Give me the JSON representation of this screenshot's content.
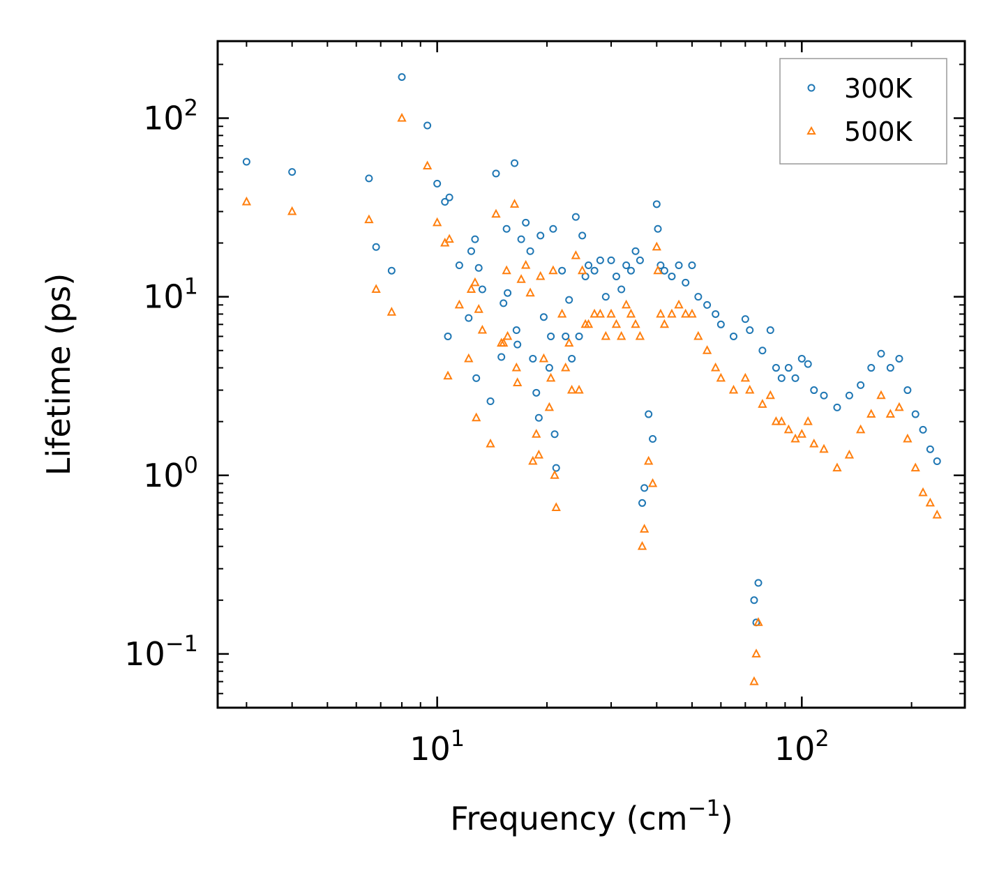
{
  "chart_data": {
    "type": "scatter",
    "xlabel": "Frequency (cm",
    "xlabel_exp": "−1",
    "xlabel_close": ")",
    "ylabel": "Lifetime (ps)",
    "xscale": "log",
    "yscale": "log",
    "xlim": [
      2.5,
      280
    ],
    "ylim": [
      0.05,
      270
    ],
    "x_ticks": [
      {
        "value": 10,
        "base": "10",
        "exp": "1"
      },
      {
        "value": 100,
        "base": "10",
        "exp": "2"
      }
    ],
    "y_ticks": [
      {
        "value": 0.1,
        "base": "10",
        "exp": "−1"
      },
      {
        "value": 1,
        "base": "10",
        "exp": "0"
      },
      {
        "value": 10,
        "base": "10",
        "exp": "1"
      },
      {
        "value": 100,
        "base": "10",
        "exp": "2"
      }
    ],
    "legend_position": "top-right",
    "series": [
      {
        "name": "300K",
        "marker": "circle",
        "color": "#1f77b4",
        "points": [
          [
            3,
            57
          ],
          [
            4,
            50
          ],
          [
            6.5,
            46
          ],
          [
            6.8,
            19
          ],
          [
            7.5,
            14
          ],
          [
            8,
            170
          ],
          [
            9.4,
            91
          ],
          [
            10,
            43
          ],
          [
            10.5,
            34
          ],
          [
            10.8,
            36
          ],
          [
            10.7,
            6
          ],
          [
            11.5,
            15
          ],
          [
            12.2,
            7.6
          ],
          [
            12.4,
            18
          ],
          [
            12.7,
            21
          ],
          [
            12.8,
            3.5
          ],
          [
            13,
            14.5
          ],
          [
            13.3,
            11
          ],
          [
            14,
            2.6
          ],
          [
            14.5,
            49
          ],
          [
            15,
            4.6
          ],
          [
            15.2,
            9.2
          ],
          [
            15.5,
            24
          ],
          [
            15.6,
            10.5
          ],
          [
            16.3,
            56
          ],
          [
            16.5,
            6.5
          ],
          [
            16.6,
            5.4
          ],
          [
            17,
            21
          ],
          [
            17.5,
            26
          ],
          [
            18,
            18
          ],
          [
            18.3,
            4.5
          ],
          [
            18.7,
            2.9
          ],
          [
            19,
            2.1
          ],
          [
            19.2,
            22
          ],
          [
            19.6,
            7.7
          ],
          [
            20.3,
            4
          ],
          [
            20.5,
            6
          ],
          [
            20.8,
            24
          ],
          [
            21,
            1.7
          ],
          [
            21.2,
            1.1
          ],
          [
            22,
            14
          ],
          [
            22.5,
            6
          ],
          [
            23,
            9.6
          ],
          [
            23.4,
            4.5
          ],
          [
            24,
            28
          ],
          [
            24.5,
            6
          ],
          [
            25,
            22
          ],
          [
            25.5,
            13
          ],
          [
            26,
            15
          ],
          [
            27,
            14
          ],
          [
            28,
            16
          ],
          [
            29,
            10
          ],
          [
            30,
            16
          ],
          [
            31,
            13
          ],
          [
            32,
            11
          ],
          [
            33,
            15
          ],
          [
            34,
            14
          ],
          [
            35,
            18
          ],
          [
            36,
            16
          ],
          [
            36.5,
            0.7
          ],
          [
            37,
            0.85
          ],
          [
            38,
            2.2
          ],
          [
            39,
            1.6
          ],
          [
            40,
            33
          ],
          [
            40.3,
            24
          ],
          [
            41,
            15
          ],
          [
            42,
            14
          ],
          [
            44,
            13
          ],
          [
            46,
            15
          ],
          [
            48,
            12
          ],
          [
            50,
            15
          ],
          [
            52,
            10
          ],
          [
            55,
            9
          ],
          [
            58,
            8
          ],
          [
            60,
            7
          ],
          [
            65,
            6
          ],
          [
            70,
            7.5
          ],
          [
            72,
            6.5
          ],
          [
            74,
            0.2
          ],
          [
            75,
            0.15
          ],
          [
            76,
            0.25
          ],
          [
            78,
            5
          ],
          [
            82,
            6.5
          ],
          [
            85,
            4
          ],
          [
            88,
            3.5
          ],
          [
            92,
            4
          ],
          [
            96,
            3.5
          ],
          [
            100,
            4.5
          ],
          [
            104,
            4.2
          ],
          [
            108,
            3
          ],
          [
            115,
            2.8
          ],
          [
            125,
            2.4
          ],
          [
            135,
            2.8
          ],
          [
            145,
            3.2
          ],
          [
            155,
            4
          ],
          [
            165,
            4.8
          ],
          [
            175,
            4
          ],
          [
            185,
            4.5
          ],
          [
            195,
            3
          ],
          [
            205,
            2.2
          ],
          [
            215,
            1.8
          ],
          [
            225,
            1.4
          ],
          [
            235,
            1.2
          ]
        ]
      },
      {
        "name": "500K",
        "marker": "triangle",
        "color": "#ff7f0e",
        "points": [
          [
            3,
            34
          ],
          [
            4,
            30
          ],
          [
            6.5,
            27
          ],
          [
            6.8,
            11
          ],
          [
            7.5,
            8.2
          ],
          [
            8,
            100
          ],
          [
            9.4,
            54
          ],
          [
            10,
            26
          ],
          [
            10.5,
            20
          ],
          [
            10.8,
            21
          ],
          [
            10.7,
            3.6
          ],
          [
            11.5,
            9
          ],
          [
            12.2,
            4.5
          ],
          [
            12.4,
            11
          ],
          [
            12.7,
            12
          ],
          [
            12.8,
            2.1
          ],
          [
            13,
            8.5
          ],
          [
            13.3,
            6.5
          ],
          [
            14,
            1.5
          ],
          [
            14.5,
            29
          ],
          [
            15,
            5.5
          ],
          [
            15.2,
            5.5
          ],
          [
            15.5,
            14
          ],
          [
            15.6,
            6
          ],
          [
            16.3,
            33
          ],
          [
            16.5,
            4
          ],
          [
            16.6,
            3.3
          ],
          [
            17,
            12.5
          ],
          [
            17.5,
            15
          ],
          [
            18,
            10.5
          ],
          [
            18.3,
            1.2
          ],
          [
            18.7,
            1.7
          ],
          [
            19,
            1.3
          ],
          [
            19.2,
            13
          ],
          [
            19.6,
            4.5
          ],
          [
            20.3,
            2.4
          ],
          [
            20.5,
            3.5
          ],
          [
            20.8,
            14
          ],
          [
            21,
            1.0
          ],
          [
            21.2,
            0.66
          ],
          [
            22,
            8
          ],
          [
            22.5,
            4
          ],
          [
            23,
            5.5
          ],
          [
            23.4,
            3
          ],
          [
            24,
            17
          ],
          [
            24.5,
            3
          ],
          [
            25,
            14
          ],
          [
            25.5,
            7
          ],
          [
            26,
            7
          ],
          [
            27,
            8
          ],
          [
            28,
            8
          ],
          [
            29,
            6
          ],
          [
            30,
            8
          ],
          [
            31,
            7
          ],
          [
            32,
            6
          ],
          [
            33,
            9
          ],
          [
            34,
            8
          ],
          [
            35,
            7
          ],
          [
            36,
            6
          ],
          [
            36.5,
            0.4
          ],
          [
            37,
            0.5
          ],
          [
            38,
            1.2
          ],
          [
            39,
            0.9
          ],
          [
            40,
            19
          ],
          [
            40.3,
            14
          ],
          [
            41,
            8
          ],
          [
            42,
            7
          ],
          [
            44,
            8
          ],
          [
            46,
            9
          ],
          [
            48,
            8
          ],
          [
            50,
            8
          ],
          [
            52,
            6
          ],
          [
            55,
            5
          ],
          [
            58,
            4
          ],
          [
            60,
            3.5
          ],
          [
            65,
            3
          ],
          [
            70,
            3.5
          ],
          [
            72,
            3
          ],
          [
            74,
            0.07
          ],
          [
            75,
            0.1
          ],
          [
            76,
            0.15
          ],
          [
            78,
            2.5
          ],
          [
            82,
            2.8
          ],
          [
            85,
            2
          ],
          [
            88,
            2
          ],
          [
            92,
            1.8
          ],
          [
            96,
            1.6
          ],
          [
            100,
            1.7
          ],
          [
            104,
            2
          ],
          [
            108,
            1.5
          ],
          [
            115,
            1.4
          ],
          [
            125,
            1.1
          ],
          [
            135,
            1.3
          ],
          [
            145,
            1.8
          ],
          [
            155,
            2.2
          ],
          [
            165,
            2.8
          ],
          [
            175,
            2.2
          ],
          [
            185,
            2.4
          ],
          [
            195,
            1.6
          ],
          [
            205,
            1.1
          ],
          [
            215,
            0.8
          ],
          [
            225,
            0.7
          ],
          [
            235,
            0.6
          ]
        ]
      }
    ]
  }
}
